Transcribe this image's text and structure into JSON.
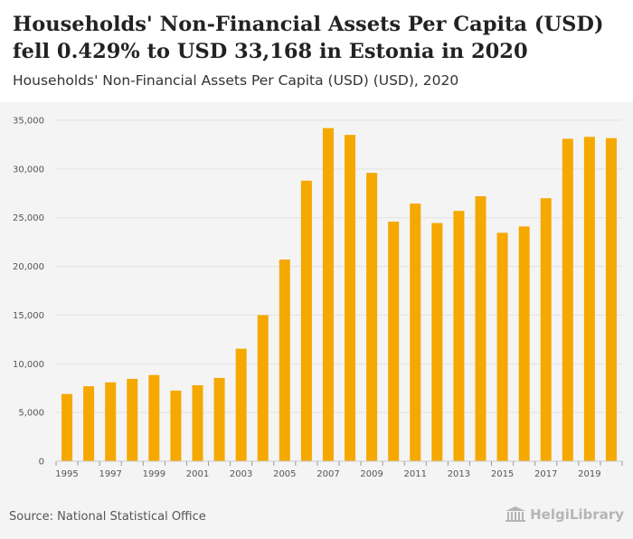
{
  "header": {
    "title": "Households' Non-Financial Assets Per Capita (USD) fell 0.429% to USD 33,168 in Estonia in 2020",
    "subtitle": "Households' Non-Financial Assets Per Capita (USD) (USD), 2020"
  },
  "footer": {
    "source": "Source: National Statistical Office",
    "logo_text": "HelgiLibrary"
  },
  "colors": {
    "bar": "#f5a800",
    "background": "#f4f4f4",
    "grid": "#e2e2e2"
  },
  "chart_data": {
    "type": "bar",
    "title": "Households' Non-Financial Assets Per Capita (USD) (USD), 2020",
    "xlabel": "",
    "ylabel": "",
    "ylim": [
      0,
      35000
    ],
    "yticks": [
      0,
      5000,
      10000,
      15000,
      20000,
      25000,
      30000,
      35000
    ],
    "ytick_labels": [
      "0",
      "5,000",
      "10,000",
      "15,000",
      "20,000",
      "25,000",
      "30,000",
      "35,000"
    ],
    "categories": [
      "1995",
      "1996",
      "1997",
      "1998",
      "1999",
      "2000",
      "2001",
      "2002",
      "2003",
      "2004",
      "2005",
      "2006",
      "2007",
      "2008",
      "2009",
      "2010",
      "2011",
      "2012",
      "2013",
      "2014",
      "2015",
      "2016",
      "2017",
      "2018",
      "2019",
      "2020"
    ],
    "xtick_labels": [
      "1995",
      "1997",
      "1999",
      "2001",
      "2003",
      "2005",
      "2007",
      "2009",
      "2011",
      "2013",
      "2015",
      "2017",
      "2019"
    ],
    "values": [
      6900,
      7700,
      8100,
      8450,
      8850,
      7250,
      7800,
      8550,
      11550,
      15000,
      20700,
      28800,
      34200,
      33500,
      29600,
      24600,
      26450,
      24450,
      25700,
      27200,
      23450,
      24100,
      27000,
      33100,
      33300,
      33168
    ],
    "grid": true
  }
}
